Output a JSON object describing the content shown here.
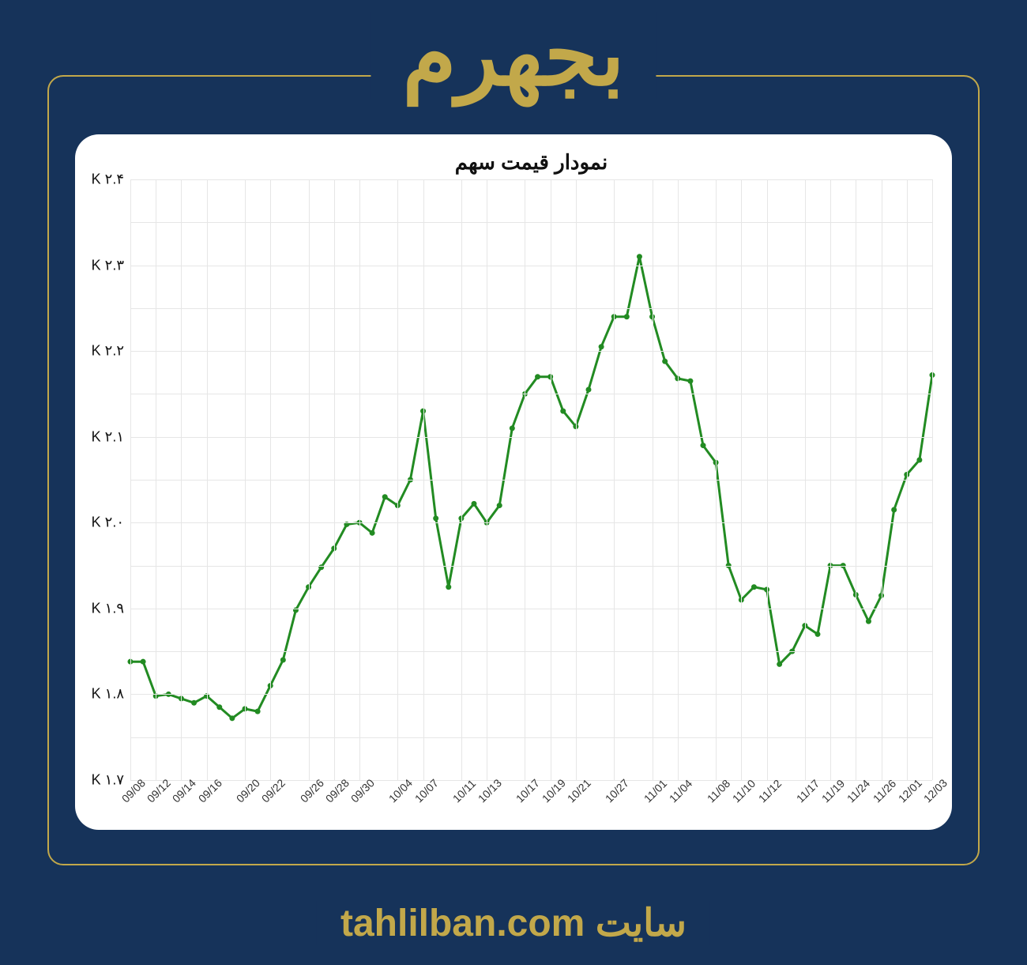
{
  "page": {
    "background_color": "#16335a",
    "frame_border_color": "#c2a84a",
    "title": "بجهرم",
    "title_color": "#c2a84a",
    "title_fontsize": 110,
    "footer_text": "سایت tahlilban.com",
    "footer_color": "#c2a84a",
    "footer_fontsize": 48
  },
  "chart": {
    "type": "line",
    "title": "نمودار قیمت سهم",
    "title_fontsize": 26,
    "background_color": "#ffffff",
    "grid_color": "#e6e6e6",
    "line_color": "#228b22",
    "marker_color": "#228b22",
    "line_width": 3,
    "marker_radius": 3.5,
    "ylim": [
      1700,
      2400
    ],
    "ytick_step": 100,
    "y_labels": [
      "۱.۷ K",
      "۱.۸ K",
      "۱.۹ K",
      "۲.۰ K",
      "۲.۱ K",
      "۲.۲ K",
      "۲.۳ K",
      "۲.۴ K"
    ],
    "y_label_fontsize": 18,
    "x_categories": [
      "09/08",
      "09/12",
      "09/14",
      "09/16",
      "09/20",
      "09/22",
      "09/26",
      "09/28",
      "09/30",
      "10/04",
      "10/07",
      "10/11",
      "10/13",
      "10/17",
      "10/19",
      "10/21",
      "10/27",
      "11/01",
      "11/04",
      "11/08",
      "11/10",
      "11/12",
      "11/17",
      "11/19",
      "11/24",
      "11/26",
      "12/01",
      "12/03"
    ],
    "x_label_fontsize": 14,
    "x_label_rotation": -45,
    "values": [
      1838,
      1838,
      1798,
      1800,
      1795,
      1790,
      1798,
      1785,
      1772,
      1783,
      1780,
      1810,
      1840,
      1898,
      1925,
      1948,
      1970,
      1998,
      2000,
      1988,
      2030,
      2020,
      2050,
      2130,
      2005,
      1925,
      2005,
      2022,
      2000,
      2020,
      2110,
      2150,
      2170,
      2170,
      2130,
      2112,
      2155,
      2205,
      2240,
      2240,
      2310,
      2240,
      2188,
      2168,
      2165,
      2090,
      2070,
      1950,
      1910,
      1925,
      1922,
      1835,
      1850,
      1880,
      1870,
      1950,
      1950,
      1916,
      1885,
      1915,
      2015,
      2056,
      2073,
      2172
    ],
    "x_tick_positions": [
      0,
      2,
      4,
      6,
      9,
      11,
      14,
      16,
      18,
      21,
      23,
      26,
      28,
      31,
      33,
      35,
      38,
      41,
      43,
      46,
      48,
      50,
      53,
      55,
      57,
      59,
      61,
      63
    ]
  }
}
